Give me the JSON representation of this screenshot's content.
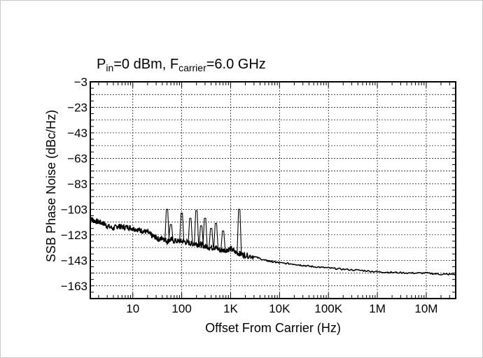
{
  "chart_data": {
    "type": "line",
    "title": {
      "pin_main": "P",
      "pin_sub": "in",
      "pin_rest": "=0 dBm, F",
      "fc_sub": "carrier",
      "fc_rest": "=6.0 GHz"
    },
    "xlabel": "Offset From Carrier (Hz)",
    "ylabel": "SSB Phase Noise (dBc/Hz)",
    "x_scale": "log",
    "xlim": [
      1.35,
      40000000
    ],
    "ylim": [
      -173,
      -3
    ],
    "grid": true,
    "x_ticks": [
      {
        "value": 10,
        "label": "10"
      },
      {
        "value": 100,
        "label": "100"
      },
      {
        "value": 1000,
        "label": "1K"
      },
      {
        "value": 10000,
        "label": "10K"
      },
      {
        "value": 100000,
        "label": "100K"
      },
      {
        "value": 1000000,
        "label": "1M"
      },
      {
        "value": 10000000,
        "label": "10M"
      }
    ],
    "y_ticks": [
      -3,
      -23,
      -43,
      -63,
      -83,
      -103,
      -123,
      -143,
      -163
    ],
    "series": [
      {
        "color": "#000000",
        "x": [
          1.4,
          1.6,
          2,
          2.5,
          3,
          4,
          5,
          6,
          8,
          10,
          13,
          16,
          20,
          25,
          30,
          35,
          40,
          50,
          60,
          80,
          100,
          130,
          160,
          200,
          250,
          300,
          400,
          500,
          600,
          800,
          1000,
          1300,
          1600,
          2000,
          3000,
          5000,
          7000,
          10000,
          20000,
          30000,
          50000,
          100000,
          200000,
          500000,
          1000000,
          2000000,
          5000000,
          10000000,
          20000000,
          40000000
        ],
        "y": [
          -110,
          -112,
          -113,
          -114,
          -116,
          -118,
          -116,
          -117,
          -117,
          -118,
          -119,
          -120,
          -121,
          -124,
          -125,
          -127,
          -125,
          -128,
          -127,
          -128,
          -128,
          -129,
          -130,
          -130,
          -131,
          -132,
          -133,
          -133,
          -135,
          -135,
          -134,
          -137,
          -138,
          -139,
          -140,
          -143,
          -144,
          -145,
          -146,
          -147,
          -148,
          -149,
          -150,
          -151,
          -152,
          -152.5,
          -153,
          -153,
          -154,
          -154
        ]
      }
    ],
    "spurs": [
      {
        "x": 50,
        "y": -103
      },
      {
        "x": 60,
        "y": -115
      },
      {
        "x": 100,
        "y": -106
      },
      {
        "x": 150,
        "y": -110
      },
      {
        "x": 200,
        "y": -104
      },
      {
        "x": 250,
        "y": -116
      },
      {
        "x": 300,
        "y": -110
      },
      {
        "x": 400,
        "y": -118
      },
      {
        "x": 500,
        "y": -114
      },
      {
        "x": 700,
        "y": -120
      },
      {
        "x": 1500,
        "y": -103
      }
    ]
  }
}
